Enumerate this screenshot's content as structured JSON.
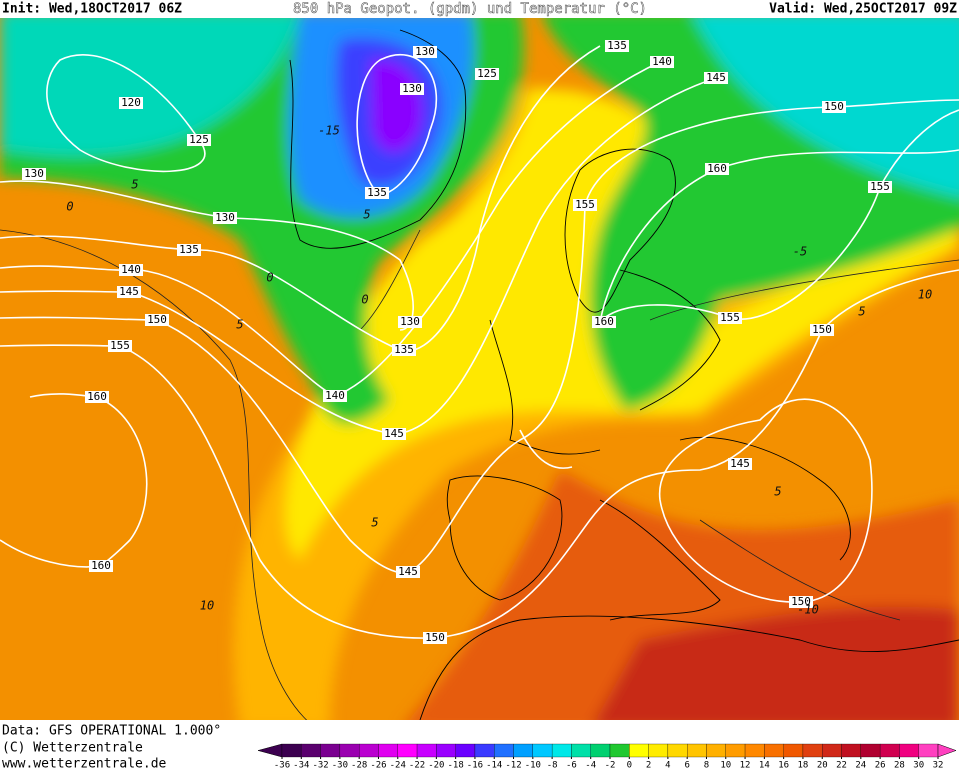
{
  "header": {
    "init": "Init: Wed,18OCT2017 06Z",
    "title": "850 hPa Geopot. (gpdm) und Temperatur (°C)",
    "valid": "Valid: Wed,25OCT2017 09Z"
  },
  "footer": {
    "source": "Data: GFS OPERATIONAL 1.000°",
    "copyright": "(C) Wetterzentrale",
    "url": "www.wetterzentrale.de"
  },
  "colorbar": {
    "ticks": [
      -36,
      -34,
      -32,
      -30,
      -28,
      -26,
      -24,
      -22,
      -20,
      -18,
      -16,
      -14,
      -12,
      -10,
      -8,
      -6,
      -4,
      -2,
      0,
      2,
      4,
      6,
      8,
      10,
      12,
      14,
      16,
      18,
      20,
      22,
      24,
      26,
      28,
      30,
      32
    ],
    "colors": [
      "#3c0050",
      "#5a006e",
      "#7a0090",
      "#9a00b0",
      "#ba00d0",
      "#e000f0",
      "#ff00ff",
      "#c800ff",
      "#9a00ff",
      "#6a00ff",
      "#3a3aff",
      "#2070ff",
      "#00a0ff",
      "#00c8ff",
      "#00e8e8",
      "#00e0a8",
      "#00d070",
      "#20c830",
      "#ffff00",
      "#ffec00",
      "#ffd800",
      "#ffc400",
      "#ffb000",
      "#ff9c00",
      "#ff8800",
      "#f87000",
      "#f05800",
      "#e04010",
      "#d02818",
      "#c01020",
      "#b00030",
      "#d00050",
      "#f00080",
      "#ff40c0"
    ]
  },
  "map": {
    "geopotential_labels": [
      130,
      135,
      125,
      140,
      145,
      130,
      120,
      150,
      125,
      160,
      130,
      135,
      155,
      130,
      135,
      155,
      140,
      145,
      150,
      130,
      160,
      155,
      150,
      155,
      135,
      140,
      160,
      145,
      145,
      160,
      145,
      150,
      150
    ],
    "temperature_labels": [
      -15,
      5,
      0,
      5,
      0,
      -5,
      5,
      0,
      10,
      5,
      5,
      10,
      5,
      -10
    ]
  }
}
